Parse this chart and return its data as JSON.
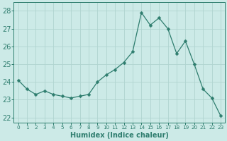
{
  "x": [
    0,
    1,
    2,
    3,
    4,
    5,
    6,
    7,
    8,
    9,
    10,
    11,
    12,
    13,
    14,
    15,
    16,
    17,
    18,
    19,
    20,
    21,
    22,
    23
  ],
  "y": [
    24.1,
    23.6,
    23.3,
    23.5,
    23.3,
    23.2,
    23.1,
    23.2,
    23.3,
    24.0,
    24.4,
    24.7,
    25.1,
    25.7,
    27.9,
    27.2,
    27.6,
    27.0,
    25.6,
    26.3,
    25.0,
    23.6,
    23.1,
    22.1
  ],
  "line_color": "#2e7d6e",
  "marker": "D",
  "marker_size": 2.5,
  "bg_color": "#cceae7",
  "grid_color": "#b0d4d0",
  "xlabel": "Humidex (Indice chaleur)",
  "ylabel_ticks": [
    22,
    23,
    24,
    25,
    26,
    27,
    28
  ],
  "xtick_labels": [
    "0",
    "1",
    "2",
    "3",
    "4",
    "5",
    "6",
    "7",
    "8",
    "9",
    "10",
    "11",
    "12",
    "13",
    "14",
    "15",
    "16",
    "17",
    "18",
    "19",
    "20",
    "21",
    "22",
    "23"
  ],
  "ylim": [
    21.7,
    28.5
  ],
  "xlim": [
    -0.5,
    23.5
  ],
  "tick_color": "#2e7d6e",
  "label_color": "#2e7d6e",
  "spine_color": "#2e7d6e",
  "ytick_fontsize": 7,
  "xtick_fontsize": 5.2,
  "xlabel_fontsize": 7
}
